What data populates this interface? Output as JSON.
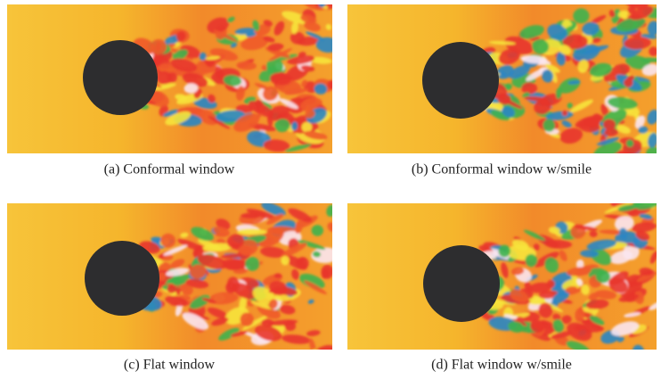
{
  "panels": [
    {
      "caption": "(a) Conformal window"
    },
    {
      "caption": "(b) Conformal window w/smile"
    },
    {
      "caption": "(c) Flat window"
    },
    {
      "caption": "(d) Flat window w/smile"
    }
  ]
}
